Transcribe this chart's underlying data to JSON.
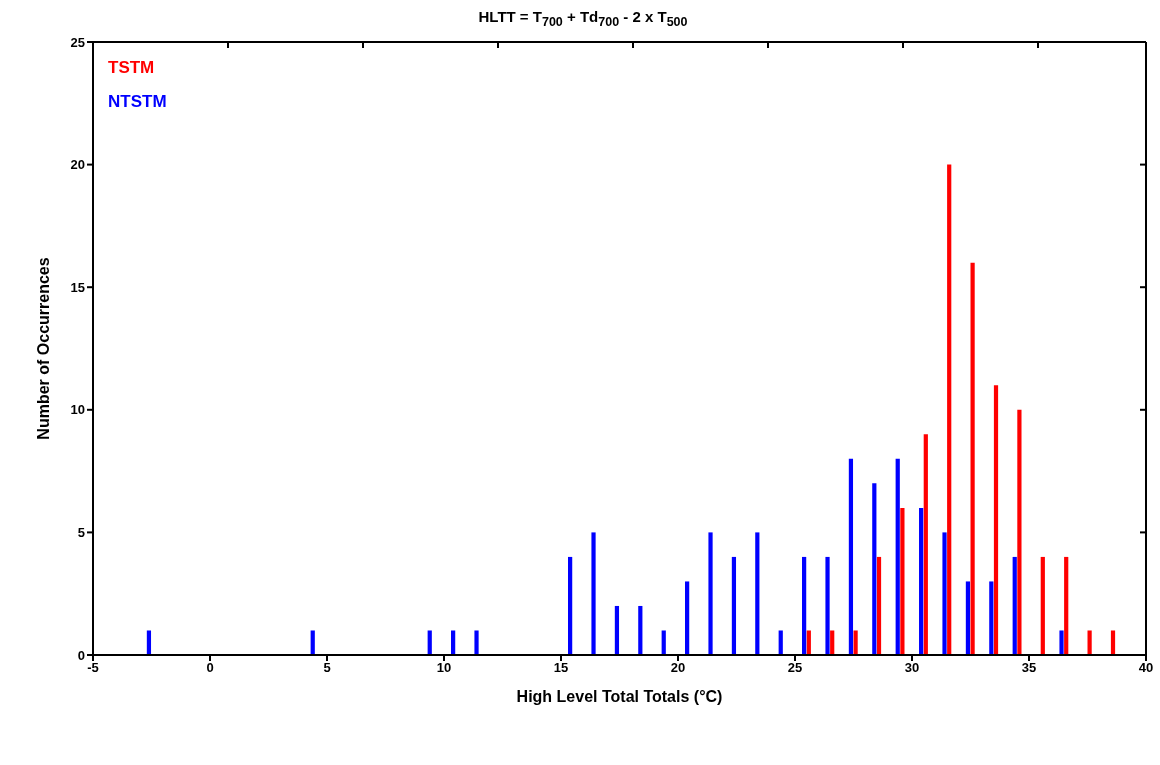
{
  "chart_data": {
    "type": "bar",
    "title": "HLTT = T$_{700}$ + Td$_{700}$ - 2 x T$_{500}$",
    "xlabel": "High Level Total Totals (°C)",
    "ylabel": "Number of Occurrences",
    "series": [
      {
        "name": "TSTM",
        "color": "#ff0000",
        "x": [
          25.6,
          26.6,
          27.6,
          28.6,
          29.6,
          30.6,
          31.6,
          32.6,
          33.6,
          34.6,
          35.6,
          36.6,
          37.6,
          38.6
        ],
        "values": [
          1,
          1,
          1,
          4,
          6,
          9,
          20,
          16,
          11,
          10,
          4,
          4,
          1,
          1
        ]
      },
      {
        "name": "NTSTM",
        "color": "#0000ff",
        "x": [
          -2.6,
          4.4,
          9.4,
          10.4,
          11.4,
          15.4,
          16.4,
          17.4,
          18.4,
          19.4,
          20.4,
          21.4,
          22.4,
          23.4,
          24.4,
          25.4,
          26.4,
          27.4,
          28.4,
          29.4,
          30.4,
          31.4,
          32.4,
          33.4,
          34.4,
          36.4
        ],
        "values": [
          1,
          1,
          1,
          1,
          1,
          4,
          5,
          2,
          2,
          1,
          3,
          5,
          4,
          5,
          1,
          4,
          4,
          8,
          7,
          8,
          6,
          5,
          3,
          3,
          4,
          1
        ]
      }
    ],
    "xlim": [
      -5,
      40
    ],
    "xticks": [
      -5,
      0,
      5,
      10,
      15,
      20,
      25,
      30,
      35,
      40
    ],
    "ylim": [
      0,
      25
    ],
    "yticks": [
      0,
      5,
      10,
      15,
      20,
      25
    ],
    "legend": "top left",
    "grid": false
  }
}
